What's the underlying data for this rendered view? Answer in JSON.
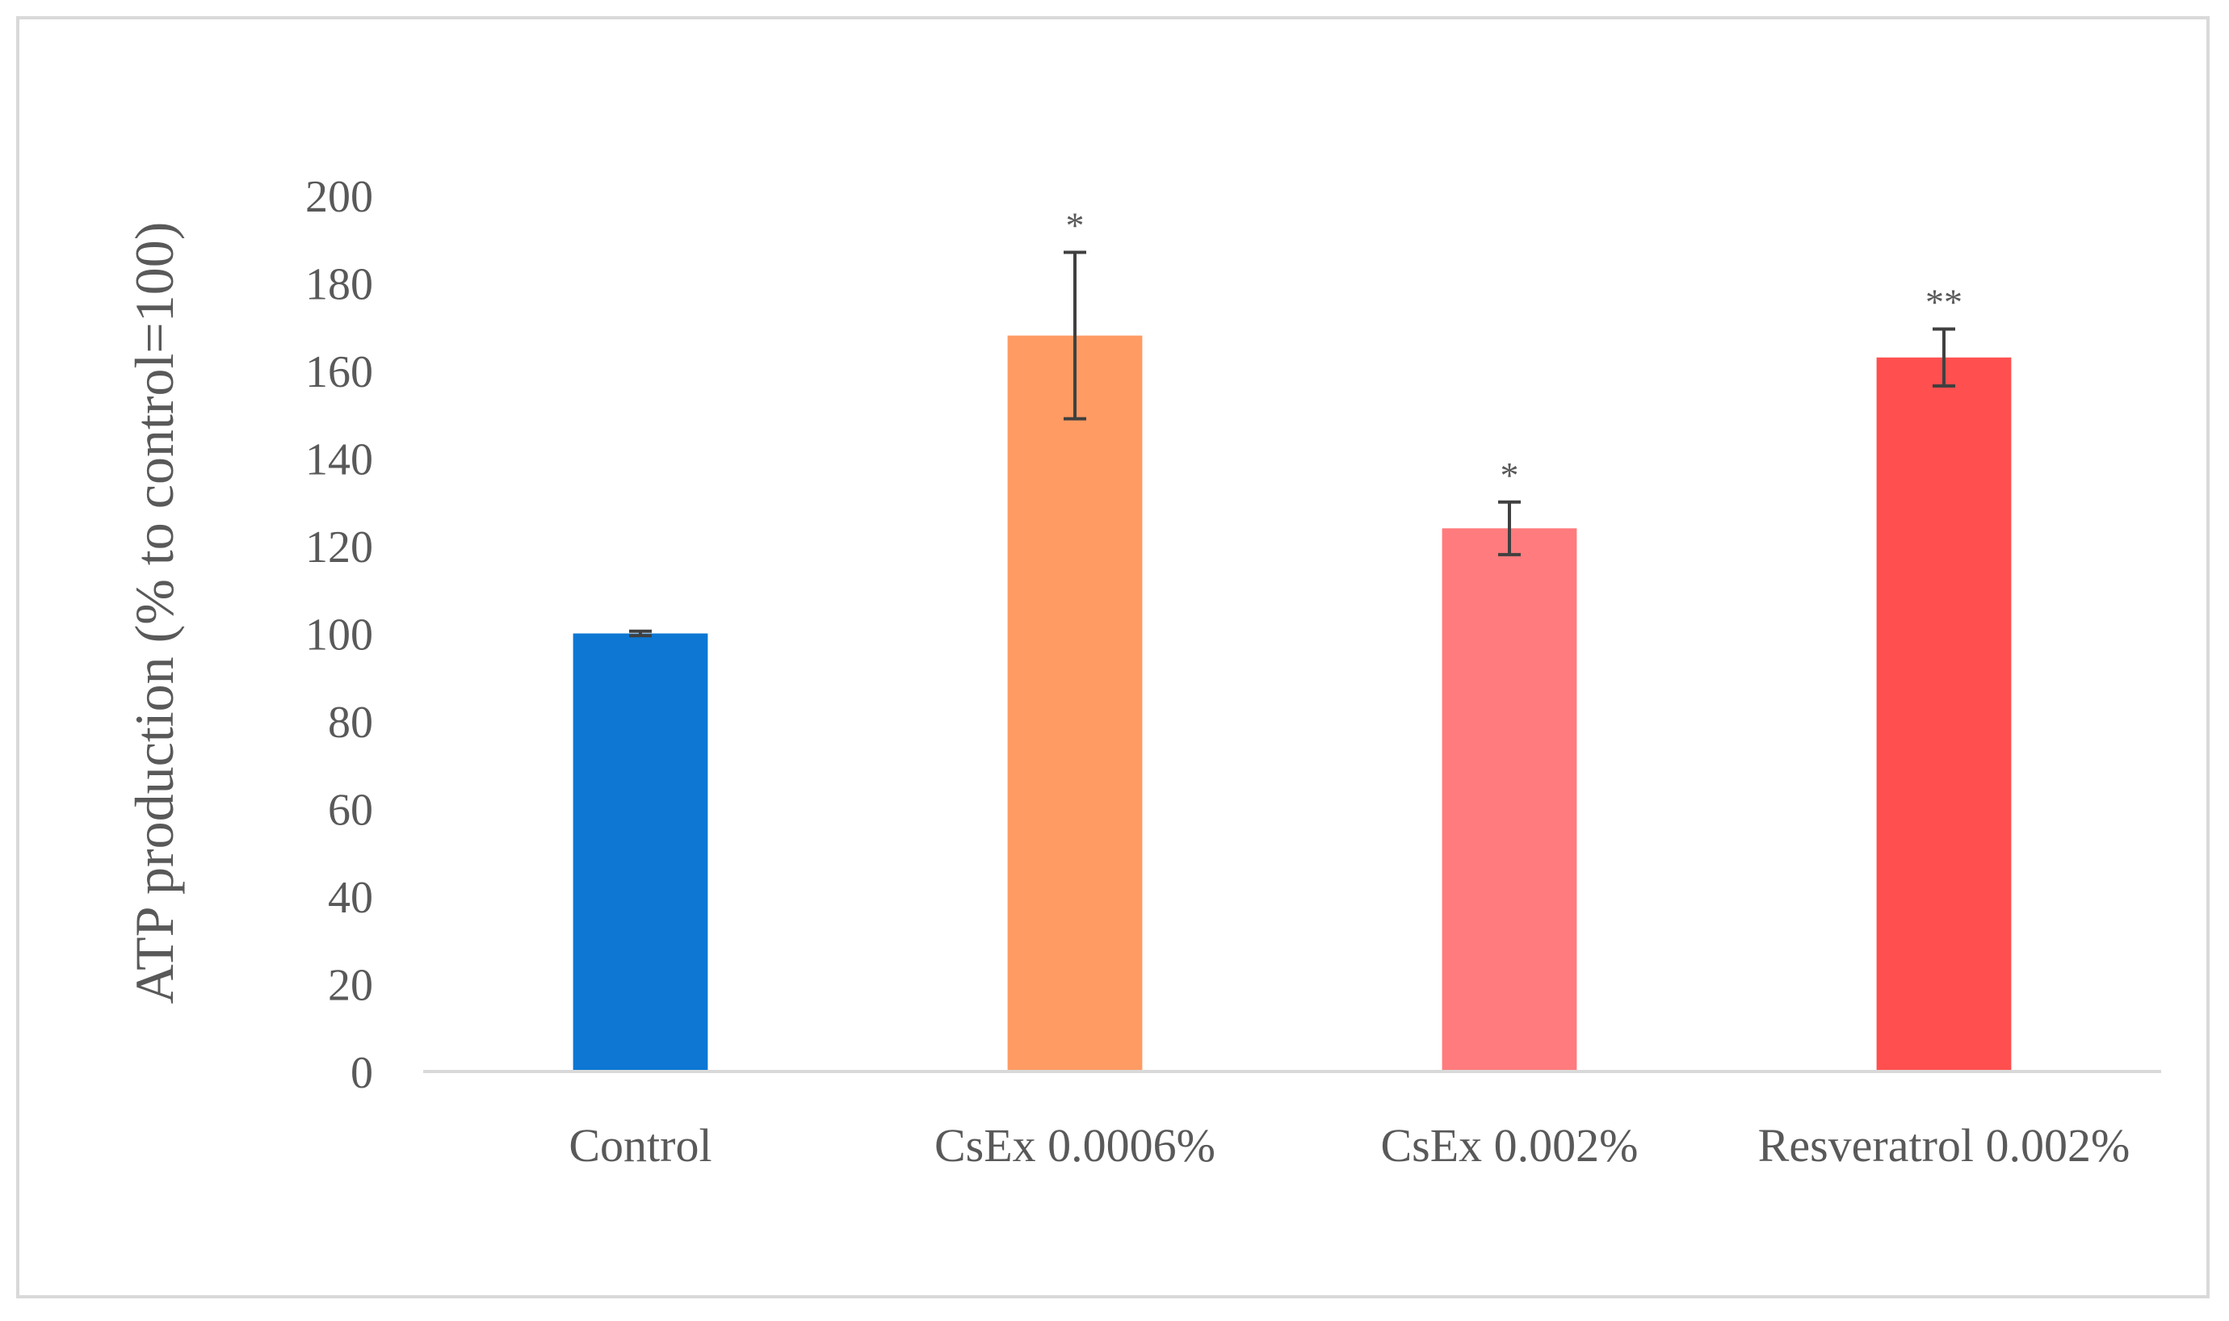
{
  "chart_data": {
    "type": "bar",
    "title": "",
    "xlabel": "",
    "ylabel": "ATP production (% to control=100)",
    "ylim": [
      0,
      200
    ],
    "yticks": [
      0,
      20,
      40,
      60,
      80,
      100,
      120,
      140,
      160,
      180,
      200
    ],
    "grid": false,
    "legend": "none",
    "categories": [
      "Control",
      "CsEx 0.0006%",
      "CsEx  0.002%",
      "Resveratrol 0.002%"
    ],
    "values": [
      100,
      168,
      124,
      163
    ],
    "errors": [
      0.5,
      19,
      6,
      6.5
    ],
    "significance": [
      "",
      "*",
      "*",
      "**"
    ],
    "colors": [
      "#0d77d3",
      "#ff9b63",
      "#ff7b7d",
      "#ff4f4f"
    ],
    "axis_color": "#d9d9d9",
    "text_color": "#595959"
  }
}
